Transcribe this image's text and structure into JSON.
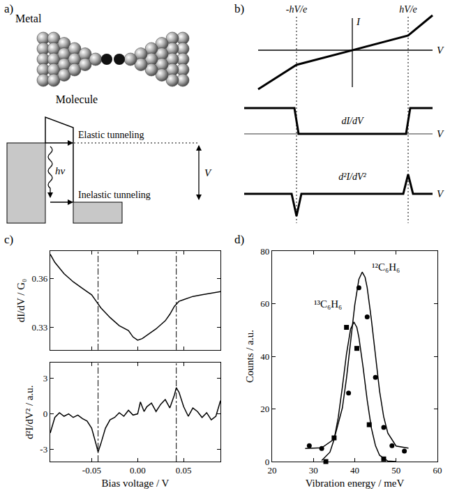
{
  "diagrams": {
    "a": {
      "panel": "a)",
      "metal": "Metal",
      "molecule": "Molecule",
      "elastic": "Elastic tunneling",
      "inelastic": "Inelastic tunneling",
      "photon": "hv",
      "bias": "V"
    },
    "b": {
      "panel": "b)",
      "left_threshold": "-hV/e",
      "right_threshold": "hV/e",
      "iv": {
        "y_label": "I",
        "x_label": "V"
      },
      "didv": {
        "label": "dI/dV",
        "x_label": "V"
      },
      "d2idv2": {
        "label": "d²I/dV²",
        "x_label": "V"
      }
    }
  },
  "chart_data": [
    {
      "type": "line",
      "panel": "c)",
      "y_label": "dI/dV / G₀",
      "color": "#000000",
      "x": [
        -0.095,
        -0.09,
        -0.08,
        -0.07,
        -0.06,
        -0.05,
        -0.045,
        -0.04,
        -0.035,
        -0.03,
        -0.02,
        -0.01,
        -0.005,
        0,
        0.005,
        0.01,
        0.02,
        0.03,
        0.035,
        0.04,
        0.045,
        0.05,
        0.06,
        0.07,
        0.08,
        0.09
      ],
      "values": [
        0.375,
        0.37,
        0.363,
        0.358,
        0.354,
        0.35,
        0.346,
        0.342,
        0.339,
        0.336,
        0.331,
        0.328,
        0.324,
        0.322,
        0.323,
        0.325,
        0.329,
        0.334,
        0.338,
        0.343,
        0.346,
        0.347,
        0.349,
        0.35,
        0.351,
        0.352
      ],
      "xlim": [
        -0.095,
        0.09
      ],
      "ylim": [
        0.316,
        0.377
      ],
      "xticks": [
        -0.05,
        {
          "value": 0,
          "label": "0.00"
        },
        0.05
      ],
      "yticks": [
        0.33,
        0.36
      ],
      "tick_labels": "y",
      "reference_lines": [
        -0.043,
        0.042
      ]
    },
    {
      "type": "line",
      "x_label": "Bias voltage / V",
      "y_label": "d²I/dV² / a.u.",
      "color": "#000000",
      "x": [
        -0.095,
        -0.09,
        -0.085,
        -0.08,
        -0.075,
        -0.07,
        -0.065,
        -0.06,
        -0.055,
        -0.05,
        -0.045,
        -0.043,
        -0.04,
        -0.035,
        -0.03,
        -0.025,
        -0.02,
        -0.015,
        -0.01,
        -0.005,
        0,
        0.003,
        0.007,
        0.01,
        0.015,
        0.02,
        0.025,
        0.03,
        0.035,
        0.04,
        0.042,
        0.045,
        0.05,
        0.055,
        0.06,
        0.065,
        0.07,
        0.075,
        0.08,
        0.085,
        0.09
      ],
      "values": [
        -1.6,
        -0.3,
        0.1,
        -0.2,
        0.0,
        -0.3,
        -0.1,
        -0.4,
        -0.6,
        -1.2,
        -2.6,
        -3.2,
        -2.5,
        -1.2,
        -0.5,
        -0.3,
        0.1,
        -0.2,
        0.3,
        -0.1,
        0.0,
        1.0,
        0.2,
        0.6,
        0.9,
        0.2,
        0.8,
        1.2,
        0.5,
        1.6,
        2.2,
        1.8,
        0.6,
        -0.2,
        0.5,
        0.2,
        -0.3,
        0.1,
        -0.5,
        -0.2,
        1.1
      ],
      "xlim": [
        -0.095,
        0.09
      ],
      "ylim": [
        -4,
        4.3
      ],
      "xticks": [
        -0.05,
        {
          "value": 0,
          "label": "0.00"
        },
        0.05
      ],
      "yticks": [
        -3,
        0,
        3
      ],
      "reference_lines": [
        -0.043,
        0.042
      ]
    },
    {
      "type": "scatter",
      "panel": "d)",
      "x_label": "Vibration energy / meV",
      "y_label": "Counts / a.u.",
      "xlim": [
        20,
        60
      ],
      "ylim": [
        0,
        80
      ],
      "xticks": [
        20,
        30,
        40,
        50,
        60
      ],
      "yticks": [
        0,
        20,
        40,
        60,
        80
      ],
      "series": [
        {
          "type": "scatter",
          "marker": "circle",
          "color": "#000000",
          "x": [
            29,
            32,
            38.5,
            41,
            43,
            45,
            47,
            49,
            52
          ],
          "values": [
            6,
            5,
            26,
            66,
            55,
            32,
            13,
            6,
            4
          ]
        },
        {
          "type": "line",
          "color": "#000000",
          "x": [
            28,
            32,
            35,
            37,
            38,
            39,
            40,
            41,
            41.8,
            42.5,
            43,
            44,
            45,
            46,
            47,
            48,
            50,
            53
          ],
          "values": [
            5,
            5.2,
            8.5,
            20.4,
            31.7,
            45.7,
            59.5,
            69.3,
            72,
            70,
            66.1,
            54.2,
            39.9,
            26.8,
            17,
            10.8,
            5.9,
            5.1
          ]
        },
        {
          "type": "scatter",
          "marker": "square",
          "color": "#000000",
          "x": [
            33,
            35,
            38,
            40.5,
            43.5,
            47
          ],
          "values": [
            0,
            9,
            51,
            43,
            14,
            1
          ]
        },
        {
          "type": "line",
          "color": "#000000",
          "x": [
            32,
            34,
            35,
            36,
            37,
            38,
            39,
            39.8,
            40.5,
            41,
            42,
            43,
            44,
            45,
            46,
            48,
            50
          ],
          "values": [
            0.4,
            3.6,
            8.4,
            16.7,
            28.3,
            40.9,
            50.4,
            53,
            51,
            47.2,
            36,
            23.4,
            12.9,
            6.1,
            2.4,
            0.2,
            0
          ]
        }
      ],
      "annotations": [
        {
          "text": "¹²C₆H₆",
          "x": 47.5,
          "y": 74
        },
        {
          "text": "¹³C₆H₆",
          "x": 33.5,
          "y": 60
        }
      ]
    }
  ]
}
